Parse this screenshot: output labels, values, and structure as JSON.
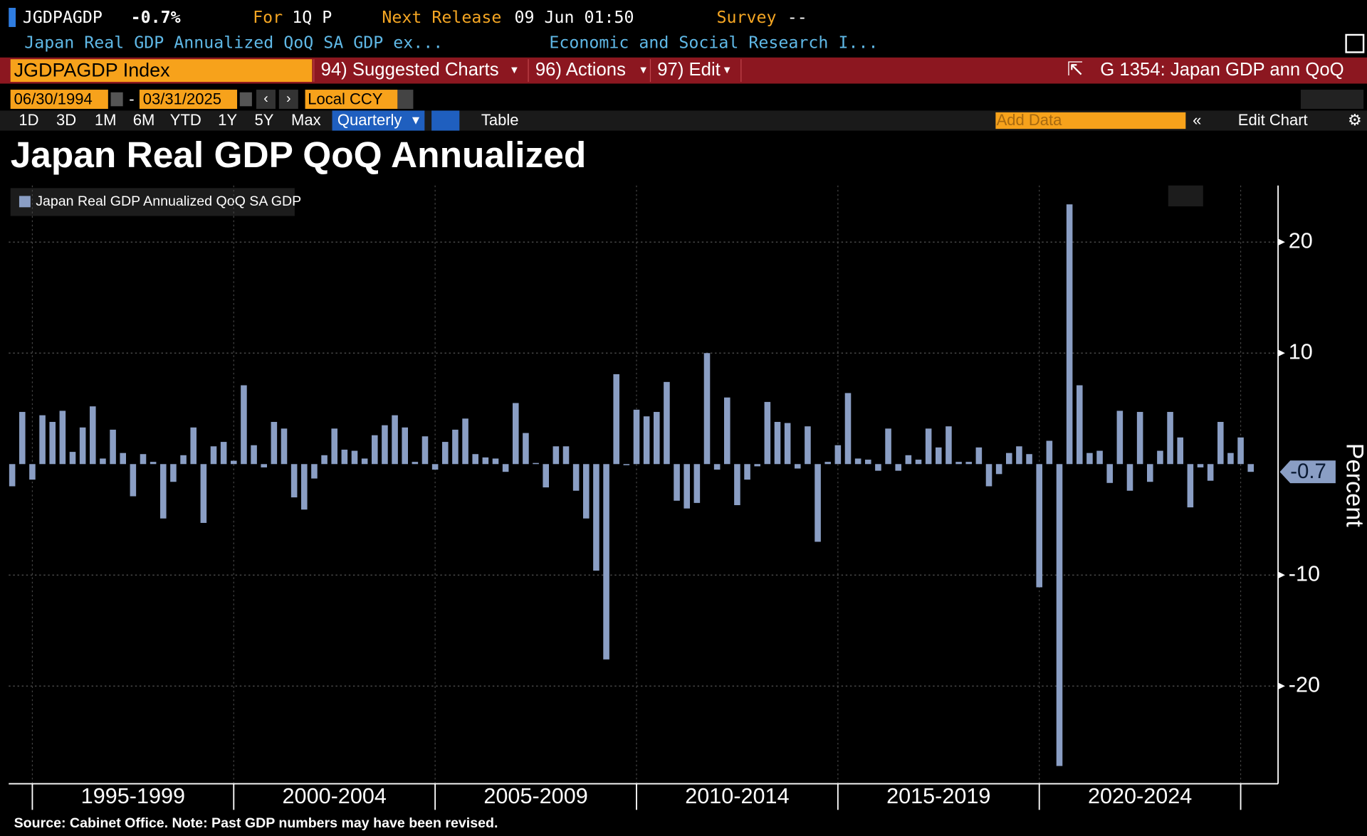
{
  "header": {
    "ticker": "JGDPAGDP",
    "value": "-0.7%",
    "period_label": "For",
    "period": "1Q P",
    "next_release_label": "Next Release",
    "next_release": "09 Jun 01:50",
    "survey_label": "Survey",
    "survey": "--",
    "description": "Japan Real GDP Annualized QoQ SA GDP ex...",
    "source_org": "Economic and Social Research I..."
  },
  "toolbar": {
    "security": "JGDPAGDP Index",
    "menu": [
      "94) Suggested Charts",
      "96) Actions",
      "97) Edit"
    ],
    "chart_id": "G 1354: Japan GDP ann QoQ",
    "start_date": "06/30/1994",
    "date_separator": "-",
    "end_date": "03/31/2025",
    "currency": "Local CCY",
    "ranges": [
      "1D",
      "3D",
      "1M",
      "6M",
      "YTD",
      "1Y",
      "5Y",
      "Max"
    ],
    "frequency": "Quarterly",
    "table": "Table",
    "add_data": "Add Data",
    "edit_chart": "Edit Chart"
  },
  "chart_data": {
    "type": "bar",
    "title": "Japan Real GDP QoQ Annualized",
    "period_labels": [
      "1995-1999",
      "2000-2004",
      "2005-2009",
      "2010-2014",
      "2015-2019",
      "2020-2024"
    ],
    "series": [
      {
        "name": "Japan Real GDP Annualized QoQ SA GDP",
        "color": "#8a9ec4",
        "values": [
          -2.0,
          4.7,
          -1.4,
          4.4,
          3.8,
          4.8,
          1.1,
          3.3,
          5.2,
          0.5,
          3.1,
          1.0,
          -2.9,
          0.9,
          0.2,
          -4.9,
          -1.6,
          0.8,
          3.3,
          -5.3,
          1.6,
          2.0,
          0.3,
          7.1,
          1.7,
          -0.3,
          3.8,
          3.2,
          -3.0,
          -4.1,
          -1.3,
          0.8,
          3.2,
          1.3,
          1.2,
          0.5,
          2.6,
          3.5,
          4.4,
          3.3,
          0.2,
          2.5,
          -0.5,
          2.0,
          3.1,
          4.1,
          0.9,
          0.6,
          0.5,
          -0.7,
          5.5,
          2.8,
          0.1,
          -2.1,
          1.6,
          1.6,
          -2.4,
          -4.9,
          -9.6,
          -17.6,
          8.1,
          -0.1,
          4.9,
          4.3,
          4.7,
          7.4,
          -3.3,
          -4.0,
          -3.5,
          10.0,
          -0.5,
          6.0,
          -3.7,
          -1.4,
          -0.2,
          5.6,
          3.8,
          3.7,
          -0.4,
          3.4,
          -7.0,
          0.2,
          1.7,
          6.4,
          0.5,
          0.4,
          -0.6,
          3.2,
          -0.6,
          0.8,
          0.4,
          3.2,
          1.5,
          3.4,
          0.2,
          0.2,
          1.5,
          -2.0,
          -0.9,
          1.0,
          1.6,
          0.9,
          -11.1,
          2.1,
          -27.2,
          23.4,
          7.1,
          1.0,
          1.2,
          -1.7,
          4.8,
          -2.4,
          4.7,
          -1.6,
          1.2,
          4.7,
          2.4,
          -3.9,
          -0.3,
          -1.5,
          3.8,
          1.0,
          2.4,
          -0.7
        ]
      }
    ],
    "ylim": [
      -28.8,
      25.1
    ],
    "yticks": [
      -20,
      -10,
      10,
      20
    ],
    "y_label": "Percent",
    "grid": true,
    "source": "Source: Cabinet Office. Note: Past GDP numbers may have been revised."
  }
}
